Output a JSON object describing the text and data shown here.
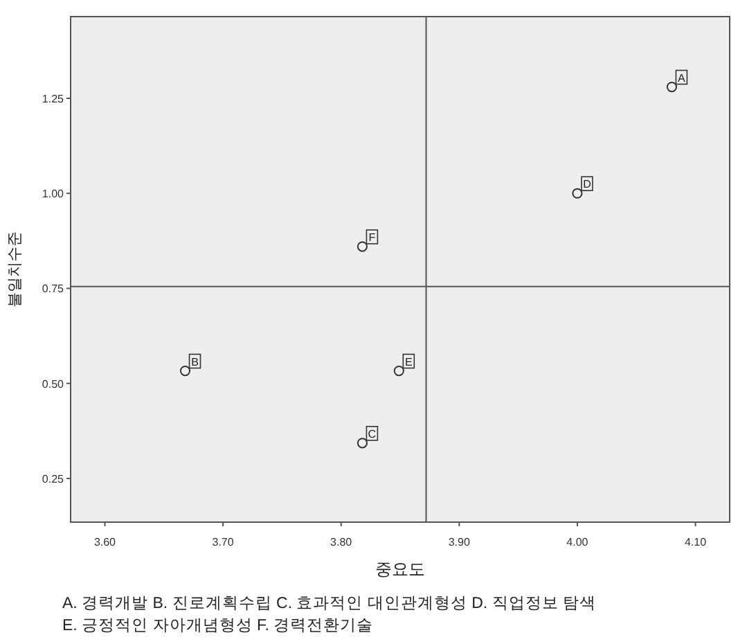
{
  "chart_data": {
    "type": "scatter",
    "xlabel": "중요도",
    "ylabel": "불일치수준",
    "x": [
      4.08,
      3.668,
      3.818,
      4.0,
      3.849,
      3.818
    ],
    "values": [
      1.28,
      0.533,
      0.343,
      1.0,
      0.533,
      0.86
    ],
    "color": "#333333",
    "marker": "circle",
    "xlim": [
      3.571,
      4.129
    ],
    "ylim": [
      0.135,
      1.465
    ],
    "xticks": [
      {
        "value": 3.6,
        "label": "3.60"
      },
      {
        "value": 3.7,
        "label": "3.70"
      },
      {
        "value": 3.8,
        "label": "3.80"
      },
      {
        "value": 3.9,
        "label": "3.90"
      },
      {
        "value": 4.0,
        "label": "4.00"
      },
      {
        "value": 4.1,
        "label": "4.10"
      }
    ],
    "yticks": [
      {
        "value": 0.25,
        "label": "0.25"
      },
      {
        "value": 0.5,
        "label": "0.50"
      },
      {
        "value": 0.75,
        "label": "0.75"
      },
      {
        "value": 1.0,
        "label": "1.00"
      },
      {
        "value": 1.25,
        "label": "1.25"
      }
    ],
    "ref_lines": [
      {
        "axis": "x",
        "value": 3.872,
        "color": "#555555"
      },
      {
        "axis": "y",
        "value": 0.755,
        "color": "#555555"
      }
    ],
    "grid": false,
    "annotations": [
      {
        "text": "A",
        "x": 4.08,
        "y": 1.28
      },
      {
        "text": "B",
        "x": 3.668,
        "y": 0.533
      },
      {
        "text": "C",
        "x": 3.818,
        "y": 0.343
      },
      {
        "text": "D",
        "x": 4.0,
        "y": 1.0
      },
      {
        "text": "E",
        "x": 3.849,
        "y": 0.533
      },
      {
        "text": "F",
        "x": 3.818,
        "y": 0.86
      },
      "A. 경력개발 B. 진로계획수립 C. 효과적인 대인관계형성 D. 직업정보 탐색",
      "E. 긍정적인 자아개념형성 F. 경력전환기술"
    ]
  }
}
